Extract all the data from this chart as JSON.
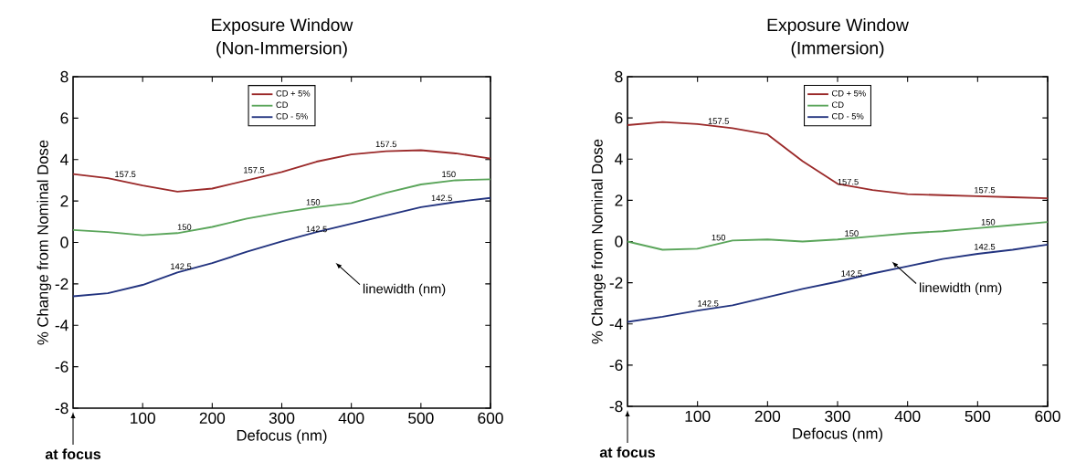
{
  "chart_data": [
    {
      "type": "line",
      "title": "Exposure Window",
      "subtitle": "(Non-Immersion)",
      "xlabel": "Defocus (nm)",
      "ylabel": "% Change from Nominal Dose",
      "x": [
        0,
        50,
        100,
        150,
        200,
        250,
        300,
        350,
        400,
        450,
        500,
        550,
        600
      ],
      "series": [
        {
          "name": "CD + 5%",
          "color": "#9b2a2a",
          "values": [
            3.3,
            3.1,
            2.75,
            2.45,
            2.6,
            3.0,
            3.4,
            3.9,
            4.25,
            4.4,
            4.45,
            4.3,
            4.05
          ]
        },
        {
          "name": "CD",
          "color": "#5aa55a",
          "values": [
            0.6,
            0.5,
            0.35,
            0.45,
            0.75,
            1.15,
            1.45,
            1.7,
            1.9,
            2.4,
            2.8,
            3.0,
            3.05
          ]
        },
        {
          "name": "CD - 5%",
          "color": "#22337f",
          "values": [
            -2.6,
            -2.45,
            -2.05,
            -1.45,
            -1.0,
            -0.45,
            0.05,
            0.5,
            0.9,
            1.3,
            1.7,
            1.95,
            2.15
          ]
        }
      ],
      "xlim": [
        0,
        600
      ],
      "ylim": [
        -8,
        8
      ],
      "xticks": [
        100,
        200,
        300,
        400,
        500,
        600
      ],
      "yticks": [
        -8,
        -6,
        -4,
        -2,
        0,
        2,
        4,
        6,
        8
      ],
      "legend": "top",
      "grid": false,
      "line_style": "solid",
      "marker": "none",
      "annotations": [
        {
          "text": "157.5",
          "x": 75,
          "y": 3.0
        },
        {
          "text": "157.5",
          "x": 260,
          "y": 3.2
        },
        {
          "text": "157.5",
          "x": 450,
          "y": 4.45
        },
        {
          "text": "150",
          "x": 160,
          "y": 0.45
        },
        {
          "text": "150",
          "x": 345,
          "y": 1.65
        },
        {
          "text": "150",
          "x": 540,
          "y": 3.0
        },
        {
          "text": "142.5",
          "x": 155,
          "y": -1.45
        },
        {
          "text": "142.5",
          "x": 350,
          "y": 0.35
        },
        {
          "text": "142.5",
          "x": 530,
          "y": 1.85
        },
        "linewidth (nm)",
        "at focus"
      ]
    },
    {
      "type": "line",
      "title": "Exposure Window",
      "subtitle": "(Immersion)",
      "xlabel": "Defocus (nm)",
      "ylabel": "% Change from Nominal Dose",
      "x": [
        0,
        50,
        100,
        150,
        200,
        250,
        300,
        350,
        400,
        450,
        500,
        550,
        600
      ],
      "series": [
        {
          "name": "CD + 5%",
          "color": "#9b2a2a",
          "values": [
            5.65,
            5.8,
            5.7,
            5.5,
            5.2,
            3.9,
            2.8,
            2.5,
            2.3,
            2.25,
            2.2,
            2.15,
            2.1
          ]
        },
        {
          "name": "CD",
          "color": "#5aa55a",
          "values": [
            0.0,
            -0.4,
            -0.35,
            0.05,
            0.1,
            0.0,
            0.1,
            0.25,
            0.4,
            0.5,
            0.65,
            0.8,
            0.95
          ]
        },
        {
          "name": "CD - 5%",
          "color": "#22337f",
          "values": [
            -3.9,
            -3.65,
            -3.35,
            -3.1,
            -2.7,
            -2.3,
            -1.95,
            -1.55,
            -1.2,
            -0.85,
            -0.6,
            -0.4,
            -0.15
          ]
        }
      ],
      "xlim": [
        0,
        600
      ],
      "ylim": [
        -8,
        8
      ],
      "xticks": [
        100,
        200,
        300,
        400,
        500,
        600
      ],
      "yticks": [
        -8,
        -6,
        -4,
        -2,
        0,
        2,
        4,
        6,
        8
      ],
      "legend": "top",
      "grid": false,
      "line_style": "solid",
      "marker": "none",
      "annotations": [
        {
          "text": "157.5",
          "x": 130,
          "y": 5.55
        },
        {
          "text": "157.5",
          "x": 315,
          "y": 2.6
        },
        {
          "text": "157.5",
          "x": 510,
          "y": 2.2
        },
        {
          "text": "150",
          "x": 130,
          "y": -0.1
        },
        {
          "text": "150",
          "x": 320,
          "y": 0.1
        },
        {
          "text": "150",
          "x": 515,
          "y": 0.65
        },
        {
          "text": "142.5",
          "x": 115,
          "y": -3.3
        },
        {
          "text": "142.5",
          "x": 320,
          "y": -1.85
        },
        {
          "text": "142.5",
          "x": 510,
          "y": -0.55
        },
        "linewidth (nm)",
        "at focus"
      ]
    }
  ]
}
